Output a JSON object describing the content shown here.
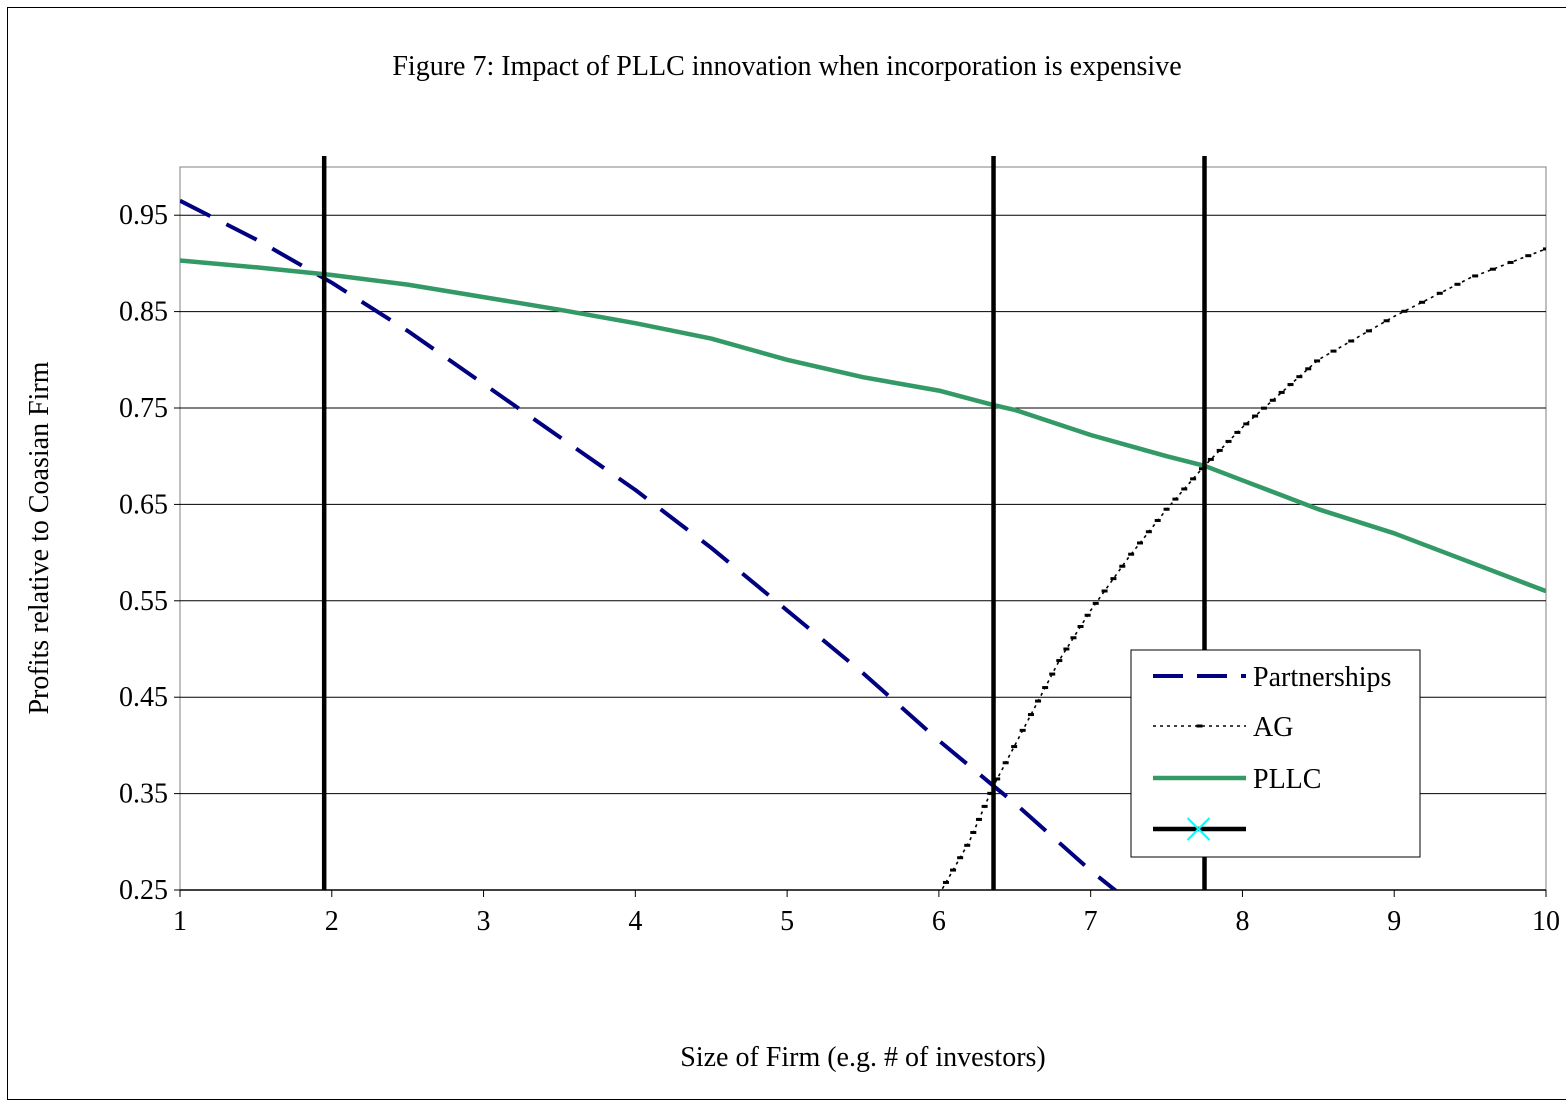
{
  "chart_data": {
    "type": "line",
    "title": "Figure 7: Impact of PLLC innovation when incorporation is expensive",
    "xlabel": "Size of Firm (e.g. # of investors)",
    "ylabel": "Profits relative to Coasian Firm",
    "xlim": [
      1,
      10
    ],
    "ylim": [
      0.25,
      1.0
    ],
    "x_ticks": [
      "1",
      "2",
      "3",
      "4",
      "5",
      "6",
      "7",
      "8",
      "9",
      "10"
    ],
    "y_ticks": [
      "0.25",
      "0.35",
      "0.45",
      "0.55",
      "0.65",
      "0.75",
      "0.85",
      "0.95"
    ],
    "grid": true,
    "legend_position": "right",
    "series": [
      {
        "name": "Partnerships",
        "style": "dashed",
        "color": "#000080",
        "x": [
          1.0,
          1.5,
          2.0,
          2.5,
          3.0,
          3.5,
          4.0,
          4.5,
          5.0,
          5.5,
          6.0,
          6.36,
          6.5,
          7.0,
          7.2
        ],
        "y": [
          0.965,
          0.925,
          0.88,
          0.83,
          0.775,
          0.72,
          0.665,
          0.605,
          0.54,
          0.475,
          0.405,
          0.358,
          0.34,
          0.27,
          0.245
        ]
      },
      {
        "name": "AG",
        "style": "dotted",
        "color": "#000000",
        "x": [
          6.0,
          6.2,
          6.36,
          6.6,
          6.8,
          7.0,
          7.25,
          7.5,
          7.75,
          8.0,
          8.25,
          8.5,
          9.0,
          9.5,
          10.0
        ],
        "y": [
          0.245,
          0.3,
          0.358,
          0.43,
          0.49,
          0.54,
          0.595,
          0.645,
          0.69,
          0.73,
          0.765,
          0.8,
          0.845,
          0.885,
          0.915
        ]
      },
      {
        "name": "PLLC",
        "style": "solid",
        "color": "#339966",
        "x": [
          1.0,
          1.5,
          2.0,
          2.5,
          3.0,
          3.5,
          4.0,
          4.5,
          5.0,
          5.5,
          6.0,
          6.36,
          6.5,
          7.0,
          7.5,
          7.75,
          8.0,
          8.5,
          9.0,
          9.5,
          10.0
        ],
        "y": [
          0.903,
          0.896,
          0.888,
          0.878,
          0.865,
          0.852,
          0.838,
          0.822,
          0.8,
          0.782,
          0.768,
          0.753,
          0.748,
          0.722,
          0.7,
          0.69,
          0.675,
          0.645,
          0.62,
          0.59,
          0.56
        ]
      },
      {
        "name": "",
        "style": "vertical-markers",
        "color": "#000000",
        "marker_color": "#00ffff",
        "x": [
          1.95,
          6.36,
          7.75
        ]
      }
    ]
  }
}
